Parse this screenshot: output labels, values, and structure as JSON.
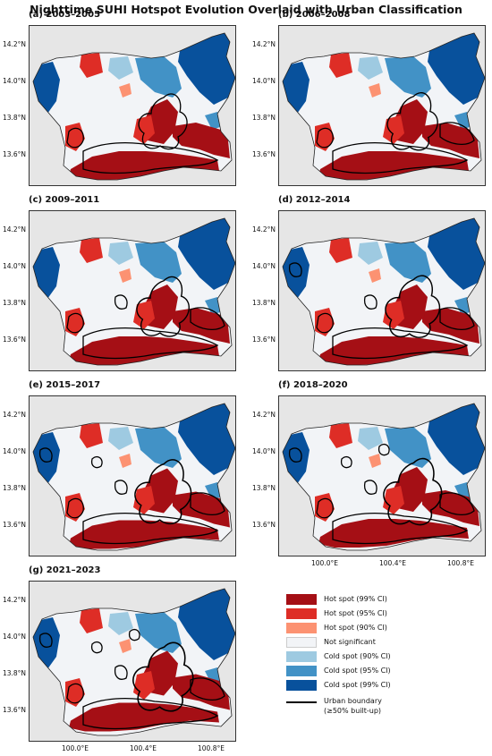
{
  "title": "Nighttime SUHI Hotspot Evolution Overlaid with Urban Classification",
  "y_ticks": [
    "14.2°N",
    "14.0°N",
    "13.8°N",
    "13.6°N"
  ],
  "x_ticks": [
    "100.0°E",
    "100.4°E",
    "100.8°E"
  ],
  "panels": [
    {
      "label": "(a) 2003–2005"
    },
    {
      "label": "(b) 2006–2008"
    },
    {
      "label": "(c) 2009–2011"
    },
    {
      "label": "(d) 2012–2014"
    },
    {
      "label": "(e) 2015–2017"
    },
    {
      "label": "(f) 2018–2020"
    },
    {
      "label": "(g) 2021–2023"
    }
  ],
  "legend": {
    "items": [
      {
        "label": "Hot spot (99% CI)",
        "color": "#a50f15"
      },
      {
        "label": "Hot spot (95% CI)",
        "color": "#de2d26"
      },
      {
        "label": "Hot spot (90% CI)",
        "color": "#fc9272"
      },
      {
        "label": "Not significant",
        "color": "#f2f4f7"
      },
      {
        "label": "Cold spot (90% CI)",
        "color": "#9ecae1"
      },
      {
        "label": "Cold spot (95% CI)",
        "color": "#4292c6"
      },
      {
        "label": "Cold spot (99% CI)",
        "color": "#08519c"
      }
    ],
    "boundary_line1": "Urban boundary",
    "boundary_line2": "(≥50% built-up)"
  }
}
